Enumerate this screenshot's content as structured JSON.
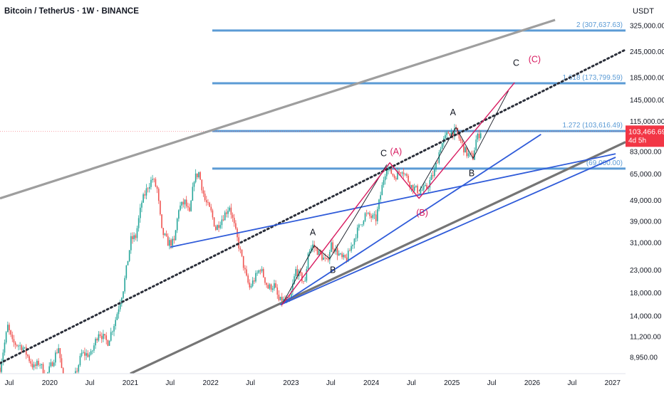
{
  "header": {
    "title": "Bitcoin / TetherUS · 1W · BINANCE",
    "currency": "USDT"
  },
  "price_tag": {
    "price": "103,466.69",
    "countdown": "4d 5h"
  },
  "colors": {
    "bull": "#26a69a",
    "bear": "#ef5350",
    "fib": "#5b9bd5",
    "blue_trend": "#2f5bd9",
    "wave_pink": "#d81b60",
    "channel": "#9e9e9e",
    "channel_dark": "#757575",
    "price_tag": "#f23645"
  },
  "chart_data": {
    "type": "candlestick",
    "title": "Bitcoin / TetherUS · 1W · BINANCE",
    "y_axis": {
      "scale": "log",
      "currency": "USDT",
      "range": [
        7500,
        345000
      ],
      "ticks": [
        "325,000.00",
        "245,000.00",
        "185,000.00",
        "145,000.00",
        "115,000.00",
        "83,000.00",
        "65,000.00",
        "49,000.00",
        "39,000.00",
        "31,000.00",
        "23,000.00",
        "18,000.00",
        "14,000.00",
        "11,200.00",
        "8,950.00"
      ]
    },
    "x_axis": {
      "range": [
        "2019-05-20",
        "2027-03-01"
      ],
      "ticks": [
        {
          "label": "Jul",
          "date": "2019-07-01"
        },
        {
          "label": "2020",
          "date": "2020-01-01"
        },
        {
          "label": "Jul",
          "date": "2020-07-01"
        },
        {
          "label": "2021",
          "date": "2021-01-01"
        },
        {
          "label": "Jul",
          "date": "2021-07-01"
        },
        {
          "label": "2022",
          "date": "2022-01-01"
        },
        {
          "label": "Jul",
          "date": "2022-07-01"
        },
        {
          "label": "2023",
          "date": "2023-01-01"
        },
        {
          "label": "Jul",
          "date": "2023-07-01"
        },
        {
          "label": "2024",
          "date": "2024-01-01"
        },
        {
          "label": "Jul",
          "date": "2024-07-01"
        },
        {
          "label": "2025",
          "date": "2025-01-01"
        },
        {
          "label": "Jul",
          "date": "2025-07-01"
        },
        {
          "label": "2026",
          "date": "2026-01-01"
        },
        {
          "label": "Jul",
          "date": "2026-07-01"
        },
        {
          "label": "2027",
          "date": "2027-01-01"
        }
      ]
    },
    "price_path": [
      [
        "2019-05-20",
        8000
      ],
      [
        "2019-06-24",
        12500
      ],
      [
        "2019-07-15",
        10500
      ],
      [
        "2019-09-01",
        10000
      ],
      [
        "2019-10-20",
        8000
      ],
      [
        "2019-11-15",
        8500
      ],
      [
        "2019-12-15",
        7200
      ],
      [
        "2020-02-10",
        10000
      ],
      [
        "2020-03-16",
        5500
      ],
      [
        "2020-04-20",
        7000
      ],
      [
        "2020-05-25",
        9300
      ],
      [
        "2020-07-06",
        9200
      ],
      [
        "2020-08-10",
        11800
      ],
      [
        "2020-09-20",
        10500
      ],
      [
        "2020-10-26",
        13500
      ],
      [
        "2020-12-01",
        19000
      ],
      [
        "2021-01-04",
        32000
      ],
      [
        "2021-01-25",
        33000
      ],
      [
        "2021-02-22",
        48000
      ],
      [
        "2021-03-22",
        57000
      ],
      [
        "2021-04-12",
        62000
      ],
      [
        "2021-05-03",
        55000
      ],
      [
        "2021-05-24",
        35000
      ],
      [
        "2021-06-21",
        31000
      ],
      [
        "2021-07-19",
        31000
      ],
      [
        "2021-08-09",
        45000
      ],
      [
        "2021-09-06",
        48000
      ],
      [
        "2021-09-27",
        42000
      ],
      [
        "2021-10-18",
        62000
      ],
      [
        "2021-11-08",
        66000
      ],
      [
        "2021-12-06",
        49000
      ],
      [
        "2022-01-03",
        43000
      ],
      [
        "2022-01-24",
        36000
      ],
      [
        "2022-03-28",
        46000
      ],
      [
        "2022-05-09",
        30000
      ],
      [
        "2022-06-13",
        21000
      ],
      [
        "2022-06-27",
        19000
      ],
      [
        "2022-08-15",
        23500
      ],
      [
        "2022-09-19",
        19000
      ],
      [
        "2022-10-17",
        19500
      ],
      [
        "2022-11-07",
        16500
      ],
      [
        "2022-12-26",
        16500
      ],
      [
        "2023-01-23",
        23000
      ],
      [
        "2023-03-06",
        20000
      ],
      [
        "2023-03-20",
        28000
      ],
      [
        "2023-04-10",
        30000
      ],
      [
        "2023-06-12",
        25000
      ],
      [
        "2023-07-03",
        30500
      ],
      [
        "2023-08-21",
        26000
      ],
      [
        "2023-09-11",
        26000
      ],
      [
        "2023-10-23",
        34000
      ],
      [
        "2023-12-04",
        42000
      ],
      [
        "2024-01-22",
        40000
      ],
      [
        "2024-02-26",
        62000
      ],
      [
        "2024-03-11",
        71000
      ],
      [
        "2024-04-15",
        63000
      ],
      [
        "2024-05-20",
        69000
      ],
      [
        "2024-07-01",
        57000
      ],
      [
        "2024-08-05",
        54000
      ],
      [
        "2024-09-09",
        56000
      ],
      [
        "2024-10-14",
        67000
      ],
      [
        "2024-11-11",
        88000
      ],
      [
        "2024-12-16",
        102000
      ],
      [
        "2025-01-20",
        103000
      ],
      [
        "2025-02-24",
        86000
      ],
      [
        "2025-03-10",
        81000
      ],
      [
        "2025-04-07",
        78000
      ],
      [
        "2025-04-21",
        94000
      ],
      [
        "2025-05-12",
        103466.69
      ]
    ],
    "horizontal_levels": [
      {
        "label": "2 (307,637.63)",
        "value": 307637.63
      },
      {
        "label": "1.618 (173,799.59)",
        "value": 173799.59
      },
      {
        "label": "1.272 (103,616.49)",
        "value": 103616.49
      },
      {
        "label": "(69,000.00)",
        "value": 69000
      }
    ],
    "lines": [
      {
        "kind": "channel-upper",
        "from": [
          "2019-05-20",
          50000
        ],
        "to": [
          "2026-04-15",
          345000
        ]
      },
      {
        "kind": "channel-lower",
        "from": [
          "2021-01-01",
          7500
        ],
        "to": [
          "2027-03-01",
          92000
        ]
      },
      {
        "kind": "dotted-trend",
        "from": [
          "2019-05-20",
          8400
        ],
        "to": [
          "2027-03-01",
          250000
        ]
      },
      {
        "kind": "blue-trend",
        "from": [
          "2021-07-01",
          29500
        ],
        "to": [
          "2027-01-15",
          81000
        ]
      },
      {
        "kind": "blue-trend",
        "from": [
          "2022-11-14",
          15800
        ],
        "to": [
          "2026-02-10",
          100000
        ]
      },
      {
        "kind": "blue-trend",
        "from": [
          "2022-11-14",
          15800
        ],
        "to": [
          "2027-01-15",
          78000
        ]
      },
      {
        "kind": "black-wave",
        "points": [
          [
            "2022-11-21",
            15800
          ],
          [
            "2023-04-17",
            30000
          ],
          [
            "2023-06-26",
            26000
          ],
          [
            "2024-03-11",
            72000
          ]
        ]
      },
      {
        "kind": "black-wave",
        "points": [
          [
            "2024-08-05",
            54000
          ],
          [
            "2025-01-20",
            108000
          ],
          [
            "2025-04-07",
            77000
          ],
          [
            "2025-09-15",
            160000
          ]
        ]
      },
      {
        "kind": "pink-wave",
        "points": [
          [
            "2022-11-21",
            15800
          ],
          [
            "2024-03-25",
            73500
          ],
          [
            "2024-08-05",
            50000
          ],
          [
            "2025-10-13",
            175000
          ]
        ]
      }
    ],
    "annotations": [
      {
        "text": "A",
        "date": "2023-04-10",
        "value": 33500,
        "color": "black"
      },
      {
        "text": "B",
        "date": "2023-07-10",
        "value": 22300,
        "color": "black"
      },
      {
        "text": "C",
        "date": "2024-02-26",
        "value": 79000,
        "color": "black"
      },
      {
        "text": "(A)",
        "date": "2024-04-22",
        "value": 80500,
        "color": "pink"
      },
      {
        "text": "(B)",
        "date": "2024-08-19",
        "value": 41500,
        "color": "pink"
      },
      {
        "text": "A",
        "date": "2025-01-06",
        "value": 123000,
        "color": "black"
      },
      {
        "text": "B",
        "date": "2025-04-01",
        "value": 63500,
        "color": "black"
      },
      {
        "text": "C",
        "date": "2025-10-20",
        "value": 210000,
        "color": "black"
      },
      {
        "text": "(C)",
        "date": "2026-01-12",
        "value": 218000,
        "color": "pink"
      }
    ]
  }
}
